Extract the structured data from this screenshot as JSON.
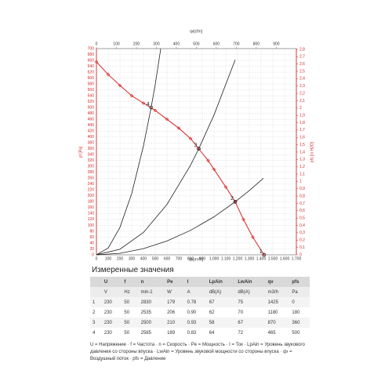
{
  "chart_data": {
    "type": "line",
    "xlabel": "qv[m³/h]",
    "x2label": "qv[cfm]",
    "ylabel": "pf [Pa]",
    "y2label": "pfs [in H2O]",
    "xlim": [
      0,
      1700
    ],
    "x2lim": [
      0,
      1000.6
    ],
    "ylim": [
      0,
      700
    ],
    "y2lim": [
      0,
      2.81
    ],
    "xticks": [
      0,
      100,
      200,
      300,
      400,
      500,
      600,
      700,
      800,
      900,
      {
        "value": 1000,
        "label": "1.000"
      },
      {
        "value": 1100,
        "label": "1.100"
      },
      {
        "value": 1200,
        "label": "1.200"
      },
      {
        "value": 1300,
        "label": "1.300"
      },
      {
        "value": 1400,
        "label": "1.400"
      },
      {
        "value": 1500,
        "label": "1.500"
      },
      {
        "value": 1600,
        "label": "1.600"
      },
      {
        "value": 1700,
        "label": "1.700"
      }
    ],
    "x2ticks": [
      0,
      100,
      200,
      300,
      400,
      500,
      600,
      700,
      800,
      900
    ],
    "yticks": [
      0,
      20,
      40,
      60,
      80,
      100,
      120,
      140,
      160,
      180,
      200,
      220,
      240,
      260,
      280,
      300,
      320,
      340,
      360,
      380,
      400,
      420,
      440,
      460,
      480,
      500,
      520,
      540,
      560,
      580,
      600,
      620,
      640,
      660,
      680,
      700
    ],
    "y2ticks": [
      0,
      {
        "value": 0.1,
        "label": "0,1"
      },
      {
        "value": 0.2,
        "label": "0,2"
      },
      {
        "value": 0.3,
        "label": "0,3"
      },
      {
        "value": 0.4,
        "label": "0,4"
      },
      {
        "value": 0.5,
        "label": "0,5"
      },
      {
        "value": 0.6,
        "label": "0,6"
      },
      {
        "value": 0.7,
        "label": "0,7"
      },
      {
        "value": 0.8,
        "label": "0,8"
      },
      {
        "value": 0.9,
        "label": "0,9"
      },
      1,
      {
        "value": 1.1,
        "label": "1,1"
      },
      {
        "value": 1.2,
        "label": "1,2"
      },
      {
        "value": 1.3,
        "label": "1,3"
      },
      {
        "value": 1.4,
        "label": "1,4"
      },
      {
        "value": 1.5,
        "label": "1,5"
      },
      {
        "value": 1.6,
        "label": "1,6"
      },
      {
        "value": 1.7,
        "label": "1,7"
      },
      {
        "value": 1.8,
        "label": "1,8"
      },
      {
        "value": 1.9,
        "label": "1,9"
      },
      2,
      {
        "value": 2.1,
        "label": "2,1"
      },
      {
        "value": 2.2,
        "label": "2,2"
      },
      {
        "value": 2.3,
        "label": "2,3"
      },
      {
        "value": 2.4,
        "label": "2,4"
      },
      {
        "value": 2.5,
        "label": "2,5"
      },
      {
        "value": 2.6,
        "label": "2,6"
      },
      {
        "value": 2.7,
        "label": "2,7"
      },
      {
        "value": 2.8,
        "label": "2,8"
      }
    ],
    "grid": true,
    "series": [
      {
        "color": "#d62728",
        "markers": true,
        "x": [
          0,
          100,
          200,
          300,
          400,
          500,
          600,
          700,
          800,
          870,
          950,
          1000,
          1100,
          1180,
          1250,
          1330,
          1425
        ],
        "values": [
          655,
          612,
          575,
          540,
          515,
          490,
          460,
          430,
          395,
          360,
          320,
          290,
          230,
          180,
          120,
          60,
          0
        ]
      },
      {
        "color": "#222222",
        "markers": false,
        "x": [
          0,
          100,
          200,
          300,
          400,
          465,
          500,
          547
        ],
        "values": [
          0,
          23,
          93,
          208,
          370,
          500,
          578,
          700
        ]
      },
      {
        "color": "#222222",
        "markers": false,
        "x": [
          0,
          200,
          400,
          600,
          800,
          870,
          1000,
          1180
        ],
        "values": [
          0,
          19,
          76,
          171,
          304,
          360,
          475,
          662
        ]
      },
      {
        "color": "#222222",
        "markers": false,
        "x": [
          0,
          200,
          400,
          600,
          800,
          1000,
          1180,
          1300,
          1420
        ],
        "values": [
          0,
          5,
          21,
          47,
          83,
          129,
          180,
          218,
          260
        ]
      }
    ],
    "points": {
      "labels": [
        "1",
        "2",
        "3",
        "4"
      ],
      "x": [
        1425,
        1180,
        870,
        465
      ],
      "values": [
        0,
        180,
        360,
        500
      ]
    }
  },
  "table": {
    "title": "Измеренные значения",
    "header": [
      "U",
      "f",
      "n",
      "Pe",
      "I",
      "LpAin",
      "LwAin",
      "qv",
      "pfs"
    ],
    "units": [
      "V",
      "Hz",
      "min-1",
      "W",
      "A",
      "dB(A)",
      "dB(A)",
      "m3/h",
      "Pa"
    ],
    "rows": [
      [
        "1",
        "230",
        "50",
        "2830",
        "179",
        "0.78",
        "67",
        "75",
        "1425",
        "0"
      ],
      [
        "2",
        "230",
        "50",
        "2535",
        "206",
        "0.90",
        "62",
        "70",
        "1180",
        "180"
      ],
      [
        "3",
        "230",
        "50",
        "2500",
        "210",
        "0.93",
        "58",
        "67",
        "870",
        "360"
      ],
      [
        "4",
        "230",
        "50",
        "2585",
        "189",
        "0.83",
        "64",
        "72",
        "465",
        "500"
      ]
    ],
    "footnote": "U = Напряжение · f = Частота · n = Скорость · Pe = Мощность · I = Ток · LpAin = Уровень звукового давления со стороны впуска · LwAin = Уровень звуковой мощности со стороны впуска · qv = Воздушный поток · pfs = Давление"
  }
}
